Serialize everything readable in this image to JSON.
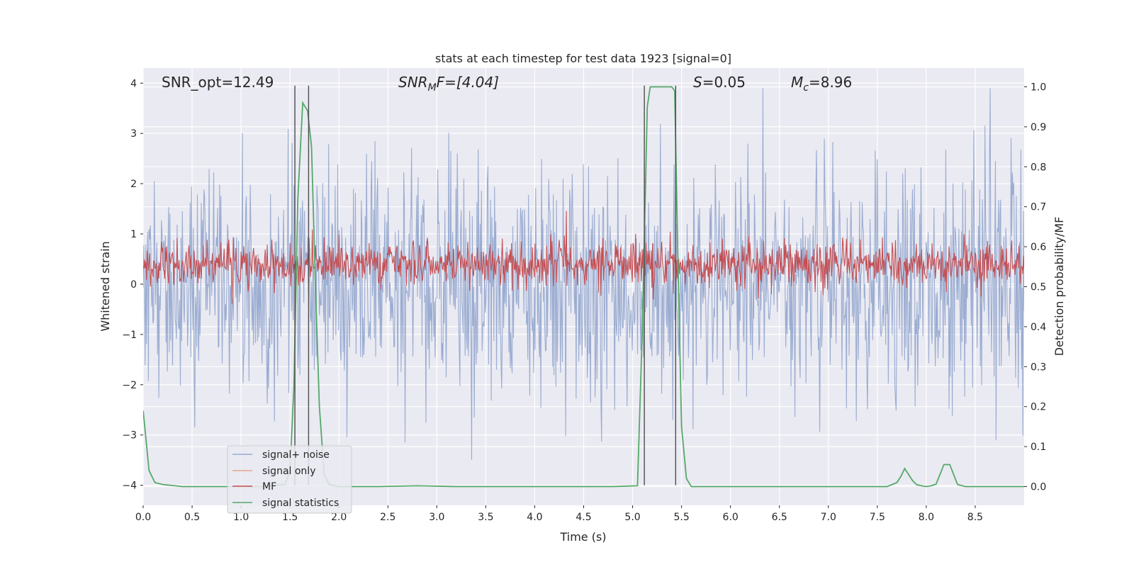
{
  "chart_data": {
    "type": "line",
    "title": "stats at each timestep for test data 1923 [signal=0]",
    "xlabel": "Time (s)",
    "ylabel": "Whitened strain",
    "y2label": "Detection probability/MF",
    "xlim": [
      0,
      9
    ],
    "ylim": [
      -4.4,
      4.3
    ],
    "y2lim": [
      -0.047,
      1.047
    ],
    "x_ticks": [
      0.0,
      0.5,
      1.0,
      1.5,
      2.0,
      2.5,
      3.0,
      3.5,
      4.0,
      4.5,
      5.0,
      5.5,
      6.0,
      6.5,
      7.0,
      7.5,
      8.0,
      8.5
    ],
    "x_tick_labels": [
      "0.0",
      "0.5",
      "1.0",
      "1.5",
      "2.0",
      "2.5",
      "3.0",
      "3.5",
      "4.0",
      "4.5",
      "5.0",
      "5.5",
      "6.0",
      "6.5",
      "7.0",
      "7.5",
      "8.0",
      "8.5"
    ],
    "y_ticks": [
      4,
      3,
      2,
      1,
      0,
      -1,
      -2,
      -3,
      -4
    ],
    "y_tick_labels": [
      "4",
      "3",
      "2",
      "1",
      "0",
      "−1",
      "−2",
      "−3",
      "−4"
    ],
    "y2_ticks": [
      1.0,
      0.9,
      0.8,
      0.7,
      0.6,
      0.5,
      0.4,
      0.3,
      0.2,
      0.1,
      0.0
    ],
    "y2_tick_labels": [
      "1.0",
      "0.9",
      "0.8",
      "0.7",
      "0.6",
      "0.5",
      "0.4",
      "0.3",
      "0.2",
      "0.1",
      "0.0"
    ],
    "grid": true,
    "legend_position": "lower-left",
    "annotations": {
      "snr_opt": "SNR_opt=12.49",
      "snr_mf_main": "SNR",
      "snr_mf_sub": "M",
      "snr_mf_rest": "F=[4.04]",
      "s_main": "S",
      "s_rest": "=0.05",
      "mc_main": "M",
      "mc_sub": "c",
      "mc_rest": "=8.96"
    },
    "vlines_x": [
      1.55,
      1.69,
      5.12,
      5.44
    ],
    "series": [
      {
        "name": "signal+ noise",
        "color": "#96a9cf",
        "axis": "left",
        "description_envelope": {
          "approx_range": [
            -3.9,
            3.9
          ],
          "typical_range": [
            -2.3,
            2.3
          ]
        },
        "sample_count": 1350,
        "seed": 1923
      },
      {
        "name": "signal only",
        "color": "#e8a48b",
        "axis": "left",
        "values": []
      },
      {
        "name": "MF",
        "color": "#c44e52",
        "axis": "right",
        "typical_range": [
          0.5,
          0.6
        ],
        "sample_count": 1350,
        "seed": 77
      },
      {
        "name": "signal statistics",
        "color": "#55a868",
        "axis": "right",
        "x": [
          0.0,
          0.06,
          0.12,
          0.2,
          0.4,
          0.8,
          1.2,
          1.45,
          1.5,
          1.54,
          1.58,
          1.63,
          1.68,
          1.72,
          1.76,
          1.8,
          1.85,
          1.9,
          2.0,
          2.4,
          2.8,
          3.2,
          4.0,
          4.8,
          5.05,
          5.1,
          5.15,
          5.18,
          5.3,
          5.4,
          5.43,
          5.46,
          5.5,
          5.55,
          5.6,
          6.0,
          7.0,
          7.6,
          7.7,
          7.74,
          7.78,
          7.82,
          7.86,
          7.9,
          7.95,
          8.0,
          8.05,
          8.1,
          8.14,
          8.18,
          8.24,
          8.28,
          8.32,
          8.4,
          8.6,
          9.0
        ],
        "values": [
          0.19,
          0.04,
          0.01,
          0.005,
          0.0,
          0.0,
          0.0,
          0.005,
          0.04,
          0.25,
          0.72,
          0.96,
          0.94,
          0.85,
          0.5,
          0.2,
          0.03,
          0.005,
          0.0,
          0.0,
          0.002,
          0.0,
          0.0,
          0.0,
          0.002,
          0.4,
          0.95,
          1.0,
          1.0,
          1.0,
          0.99,
          0.6,
          0.15,
          0.02,
          0.0,
          0.0,
          0.0,
          0.0,
          0.01,
          0.025,
          0.045,
          0.03,
          0.015,
          0.005,
          0.002,
          0.0,
          0.002,
          0.006,
          0.03,
          0.055,
          0.055,
          0.03,
          0.005,
          0.0,
          0.0,
          0.0
        ]
      }
    ]
  }
}
